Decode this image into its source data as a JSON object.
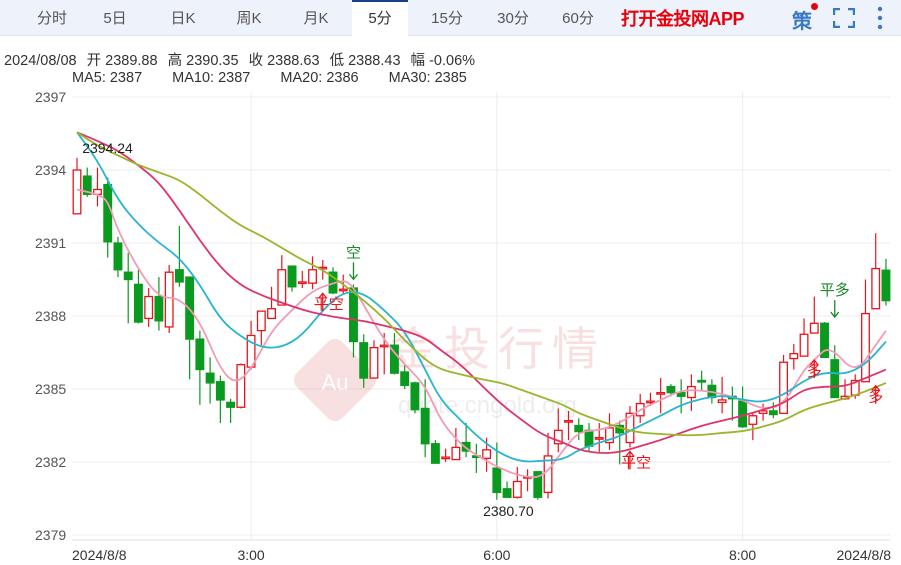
{
  "tabs": [
    {
      "label": "分时"
    },
    {
      "label": "5日"
    },
    {
      "label": "日K"
    },
    {
      "label": "周K"
    },
    {
      "label": "月K"
    },
    {
      "label": "5分",
      "active": true
    },
    {
      "label": "15分"
    },
    {
      "label": "30分"
    },
    {
      "label": "60分"
    }
  ],
  "toolbar": {
    "app_link": "打开金投网APP",
    "strategy": "策",
    "strategy_icon": "strategy-icon",
    "fullscreen_icon": "fullscreen-icon",
    "more_icon": "more-vertical-icon"
  },
  "quote": {
    "date": "2024/08/08",
    "open_label": "开",
    "open": "2389.88",
    "high_label": "高",
    "high": "2390.35",
    "close_label": "收",
    "close": "2388.63",
    "low_label": "低",
    "low": "2388.43",
    "change_label": "幅",
    "change": "-0.06%"
  },
  "ma_legend": [
    {
      "text": "MA5: 2387",
      "color": "#f29bb5"
    },
    {
      "text": "MA10: 2387",
      "color": "#27b5cf"
    },
    {
      "text": "MA20: 2386",
      "color": "#e0336e"
    },
    {
      "text": "MA30: 2385",
      "color": "#9ab52a"
    }
  ],
  "watermark": {
    "text": "金投行情",
    "url": "quote.cngold.org",
    "logo": "Au"
  },
  "colors": {
    "up": "#e8141c",
    "down": "#0a9a1f"
  },
  "chart_data": {
    "type": "candlestick",
    "ylim": [
      2379,
      2397
    ],
    "yticks": [
      "2397",
      "2394",
      "2391",
      "2388",
      "2385",
      "2382",
      "2379"
    ],
    "xticks": [
      {
        "label": "2024/8/8",
        "index": 0
      },
      {
        "label": "3:00",
        "index": 17
      },
      {
        "label": "6:00",
        "index": 41
      },
      {
        "label": "8:00",
        "index": 65
      },
      {
        "label": "2024/8/8",
        "index": 79
      }
    ],
    "max_label": {
      "text": "2394.24",
      "index": 1
    },
    "min_label": {
      "text": "2380.70",
      "index": 42
    },
    "ohlc": [
      [
        2392.2,
        2394.5,
        2392.2,
        2394.0
      ],
      [
        2393.75,
        2394.1,
        2392.9,
        2393.0
      ],
      [
        2393.0,
        2394.1,
        2392.5,
        2393.2
      ],
      [
        2393.4,
        2393.7,
        2390.4,
        2391.05
      ],
      [
        2391.0,
        2391.25,
        2389.6,
        2389.9
      ],
      [
        2389.8,
        2390.6,
        2387.7,
        2389.5
      ],
      [
        2389.3,
        2389.9,
        2387.7,
        2387.75
      ],
      [
        2387.9,
        2389.15,
        2387.55,
        2388.8
      ],
      [
        2388.8,
        2389.6,
        2387.4,
        2387.8
      ],
      [
        2387.55,
        2390.1,
        2387.3,
        2389.8
      ],
      [
        2389.9,
        2391.7,
        2389.2,
        2389.4
      ],
      [
        2389.6,
        2389.6,
        2385.4,
        2387.05
      ],
      [
        2387.05,
        2387.4,
        2384.35,
        2385.8
      ],
      [
        2385.65,
        2386.3,
        2384.4,
        2385.25
      ],
      [
        2385.3,
        2385.55,
        2383.6,
        2384.55
      ],
      [
        2384.45,
        2384.6,
        2383.6,
        2384.25
      ],
      [
        2384.25,
        2386.05,
        2384.2,
        2386.0
      ],
      [
        2385.9,
        2387.8,
        2385.8,
        2387.2
      ],
      [
        2387.4,
        2388.2,
        2386.8,
        2388.2
      ],
      [
        2387.9,
        2389.2,
        2387.9,
        2388.3
      ],
      [
        2388.45,
        2390.5,
        2388.45,
        2389.9
      ],
      [
        2390.05,
        2390.05,
        2389.0,
        2389.2
      ],
      [
        2389.35,
        2389.85,
        2389.15,
        2389.4
      ],
      [
        2389.35,
        2390.45,
        2389.1,
        2389.9
      ],
      [
        2389.95,
        2390.3,
        2389.5,
        2390.0
      ],
      [
        2389.8,
        2390.0,
        2388.9,
        2388.95
      ],
      [
        2389.1,
        2389.7,
        2388.9,
        2389.1
      ],
      [
        2389.15,
        2389.3,
        2386.3,
        2386.95
      ],
      [
        2386.9,
        2387.25,
        2385.05,
        2385.45
      ],
      [
        2385.45,
        2387.0,
        2385.45,
        2386.7
      ],
      [
        2386.75,
        2387.3,
        2385.6,
        2386.8
      ],
      [
        2386.8,
        2387.3,
        2385.6,
        2385.65
      ],
      [
        2385.7,
        2386.0,
        2385.0,
        2385.15
      ],
      [
        2385.25,
        2385.3,
        2384.0,
        2384.15
      ],
      [
        2384.2,
        2385.4,
        2382.2,
        2382.75
      ],
      [
        2382.75,
        2382.9,
        2381.95,
        2381.95
      ],
      [
        2382.15,
        2382.55,
        2382.0,
        2382.2
      ],
      [
        2382.1,
        2383.4,
        2382.1,
        2382.6
      ],
      [
        2382.8,
        2383.6,
        2382.2,
        2382.45
      ],
      [
        2382.25,
        2382.75,
        2381.55,
        2382.2
      ],
      [
        2382.15,
        2383.0,
        2381.6,
        2382.5
      ],
      [
        2381.75,
        2382.8,
        2380.45,
        2380.75
      ],
      [
        2380.9,
        2381.2,
        2380.55,
        2380.55
      ],
      [
        2380.55,
        2381.8,
        2380.5,
        2381.2
      ],
      [
        2381.35,
        2381.7,
        2380.8,
        2381.4
      ],
      [
        2381.6,
        2381.6,
        2380.45,
        2380.55
      ],
      [
        2380.75,
        2383.2,
        2380.5,
        2382.25
      ],
      [
        2382.75,
        2384.2,
        2382.4,
        2383.3
      ],
      [
        2383.65,
        2384.1,
        2382.9,
        2383.7
      ],
      [
        2383.5,
        2383.8,
        2382.9,
        2383.25
      ],
      [
        2383.3,
        2383.6,
        2382.4,
        2382.65
      ],
      [
        2382.95,
        2383.6,
        2382.4,
        2383.0
      ],
      [
        2382.8,
        2384.0,
        2382.5,
        2383.4
      ],
      [
        2383.5,
        2383.7,
        2381.9,
        2383.2
      ],
      [
        2382.8,
        2384.3,
        2382.6,
        2384.0
      ],
      [
        2383.9,
        2384.8,
        2383.6,
        2384.4
      ],
      [
        2384.45,
        2384.85,
        2384.3,
        2384.5
      ],
      [
        2384.8,
        2385.45,
        2384.0,
        2384.85
      ],
      [
        2385.1,
        2385.2,
        2384.7,
        2384.85
      ],
      [
        2384.85,
        2385.4,
        2384.0,
        2384.7
      ],
      [
        2384.65,
        2385.6,
        2384.1,
        2385.1
      ],
      [
        2385.35,
        2385.75,
        2384.9,
        2385.3
      ],
      [
        2385.15,
        2385.4,
        2384.4,
        2384.65
      ],
      [
        2384.45,
        2385.5,
        2384.0,
        2384.55
      ],
      [
        2384.7,
        2385.1,
        2383.7,
        2384.6
      ],
      [
        2384.5,
        2385.1,
        2383.4,
        2383.45
      ],
      [
        2383.55,
        2384.0,
        2382.9,
        2383.9
      ],
      [
        2384.0,
        2384.4,
        2383.7,
        2384.1
      ],
      [
        2384.1,
        2384.45,
        2383.8,
        2383.95
      ],
      [
        2384.0,
        2386.4,
        2384.0,
        2386.1
      ],
      [
        2386.25,
        2386.85,
        2385.8,
        2386.45
      ],
      [
        2386.35,
        2387.9,
        2386.35,
        2387.25
      ],
      [
        2387.3,
        2388.8,
        2387.3,
        2387.7
      ],
      [
        2387.7,
        2387.75,
        2386.3,
        2386.3
      ],
      [
        2386.2,
        2386.8,
        2384.65,
        2384.65
      ],
      [
        2384.6,
        2385.4,
        2384.55,
        2384.7
      ],
      [
        2384.75,
        2385.6,
        2384.6,
        2385.35
      ],
      [
        2385.3,
        2389.5,
        2385.3,
        2388.1
      ],
      [
        2388.3,
        2391.4,
        2388.3,
        2389.95
      ],
      [
        2389.88,
        2390.35,
        2388.43,
        2388.63
      ]
    ],
    "ma": [
      {
        "name": "MA5",
        "color": "#f29bb5",
        "points": [
          [
            0,
            2393.2
          ],
          [
            2,
            2393.0
          ],
          [
            3,
            2392.75
          ],
          [
            4,
            2391.5
          ],
          [
            6,
            2389.9
          ],
          [
            8,
            2388.75
          ],
          [
            10,
            2388.75
          ],
          [
            12,
            2387.8
          ],
          [
            14,
            2385.8
          ],
          [
            15.5,
            2385.2
          ],
          [
            17,
            2385.8
          ],
          [
            19,
            2387.4
          ],
          [
            21,
            2388.25
          ],
          [
            23,
            2389.05
          ],
          [
            25,
            2389.35
          ],
          [
            26.5,
            2389.5
          ],
          [
            28,
            2388.45
          ],
          [
            30,
            2387.0
          ],
          [
            32,
            2386.0
          ],
          [
            34,
            2385.15
          ],
          [
            35.5,
            2383.7
          ],
          [
            37.5,
            2382.7
          ],
          [
            39.5,
            2382.15
          ],
          [
            41.5,
            2381.7
          ],
          [
            43.5,
            2381.4
          ],
          [
            45.5,
            2381.35
          ],
          [
            47.5,
            2382.5
          ],
          [
            49,
            2383.25
          ],
          [
            51,
            2383.3
          ],
          [
            53,
            2383.6
          ],
          [
            55,
            2384.15
          ],
          [
            57,
            2384.55
          ],
          [
            59,
            2384.95
          ],
          [
            61,
            2384.95
          ],
          [
            63,
            2384.8
          ],
          [
            65,
            2384.55
          ],
          [
            67,
            2384.15
          ],
          [
            69,
            2384.35
          ],
          [
            71,
            2385.8
          ],
          [
            72,
            2386.2
          ],
          [
            73.5,
            2386.8
          ],
          [
            76,
            2385.6
          ],
          [
            78,
            2386.8
          ],
          [
            79,
            2387.4
          ]
        ]
      },
      {
        "name": "MA10",
        "color": "#27b5cf",
        "points": [
          [
            0,
            2395.55
          ],
          [
            2,
            2394.4
          ],
          [
            4,
            2392.75
          ],
          [
            6,
            2391.75
          ],
          [
            8,
            2391.0
          ],
          [
            10,
            2390.4
          ],
          [
            12,
            2389.3
          ],
          [
            14,
            2387.85
          ],
          [
            16,
            2387.15
          ],
          [
            18,
            2386.7
          ],
          [
            20,
            2386.7
          ],
          [
            22,
            2387.2
          ],
          [
            24,
            2388.25
          ],
          [
            26,
            2389.0
          ],
          [
            28,
            2388.95
          ],
          [
            30,
            2388.25
          ],
          [
            32,
            2387.4
          ],
          [
            34,
            2385.8
          ],
          [
            35.5,
            2384.55
          ],
          [
            37.5,
            2383.7
          ],
          [
            39.5,
            2382.9
          ],
          [
            41.5,
            2382.3
          ],
          [
            43.5,
            2382.0
          ],
          [
            45.5,
            2382.05
          ],
          [
            47.5,
            2382.1
          ],
          [
            49,
            2382.5
          ],
          [
            51,
            2382.8
          ],
          [
            53,
            2383.05
          ],
          [
            55,
            2383.5
          ],
          [
            57,
            2383.9
          ],
          [
            59,
            2384.35
          ],
          [
            61,
            2384.6
          ],
          [
            63,
            2384.75
          ],
          [
            65,
            2384.55
          ],
          [
            67,
            2384.45
          ],
          [
            69,
            2384.75
          ],
          [
            71,
            2385.35
          ],
          [
            73,
            2385.7
          ],
          [
            75,
            2385.6
          ],
          [
            77,
            2386.0
          ],
          [
            79,
            2386.95
          ]
        ]
      },
      {
        "name": "MA20",
        "color": "#e0336e",
        "points": [
          [
            0,
            2395.55
          ],
          [
            2,
            2395.2
          ],
          [
            4,
            2394.8
          ],
          [
            6,
            2394.2
          ],
          [
            8,
            2393.5
          ],
          [
            10,
            2392.35
          ],
          [
            12,
            2391.1
          ],
          [
            14,
            2390.0
          ],
          [
            16,
            2389.25
          ],
          [
            18,
            2388.85
          ],
          [
            20,
            2388.55
          ],
          [
            22,
            2388.25
          ],
          [
            24,
            2388.05
          ],
          [
            26,
            2387.9
          ],
          [
            28,
            2387.8
          ],
          [
            30,
            2387.6
          ],
          [
            32,
            2387.4
          ],
          [
            34,
            2387.1
          ],
          [
            35.5,
            2386.6
          ],
          [
            37.5,
            2386.0
          ],
          [
            39.5,
            2385.15
          ],
          [
            41.5,
            2384.35
          ],
          [
            43.5,
            2383.7
          ],
          [
            45.5,
            2383.1
          ],
          [
            47.5,
            2382.8
          ],
          [
            49,
            2382.5
          ],
          [
            51,
            2382.35
          ],
          [
            53,
            2382.4
          ],
          [
            55,
            2382.65
          ],
          [
            57,
            2382.9
          ],
          [
            59,
            2383.2
          ],
          [
            61,
            2383.5
          ],
          [
            63,
            2383.7
          ],
          [
            65,
            2383.9
          ],
          [
            67,
            2384.15
          ],
          [
            69,
            2384.4
          ],
          [
            71,
            2385.0
          ],
          [
            73,
            2385.1
          ],
          [
            75,
            2385.1
          ],
          [
            77,
            2385.45
          ],
          [
            79,
            2385.8
          ]
        ]
      },
      {
        "name": "MA30",
        "color": "#9ab52a",
        "points": [
          [
            0,
            2395.55
          ],
          [
            2,
            2395.0
          ],
          [
            4,
            2394.6
          ],
          [
            6,
            2394.2
          ],
          [
            8,
            2393.9
          ],
          [
            10,
            2393.6
          ],
          [
            12,
            2393.0
          ],
          [
            14,
            2392.3
          ],
          [
            16,
            2391.7
          ],
          [
            18,
            2391.3
          ],
          [
            20,
            2390.8
          ],
          [
            22,
            2390.3
          ],
          [
            24,
            2389.9
          ],
          [
            26,
            2389.3
          ],
          [
            28,
            2388.65
          ],
          [
            30,
            2387.9
          ],
          [
            32,
            2387.0
          ],
          [
            34,
            2386.2
          ],
          [
            35.5,
            2385.8
          ],
          [
            37.5,
            2385.6
          ],
          [
            39.5,
            2385.4
          ],
          [
            41.5,
            2385.25
          ],
          [
            43.5,
            2384.95
          ],
          [
            45.5,
            2384.65
          ],
          [
            47.5,
            2384.35
          ],
          [
            49,
            2384.0
          ],
          [
            51,
            2383.7
          ],
          [
            53,
            2383.4
          ],
          [
            55,
            2383.2
          ],
          [
            57,
            2383.15
          ],
          [
            59,
            2383.1
          ],
          [
            61,
            2383.1
          ],
          [
            63,
            2383.2
          ],
          [
            65,
            2383.25
          ],
          [
            67,
            2383.45
          ],
          [
            69,
            2383.7
          ],
          [
            71,
            2384.15
          ],
          [
            73,
            2384.4
          ],
          [
            75,
            2384.6
          ],
          [
            77,
            2384.9
          ],
          [
            79,
            2385.25
          ]
        ]
      }
    ],
    "signals": [
      {
        "text": "空",
        "index": 27,
        "price": 2389.3,
        "dir": "down",
        "color": "#1a8a2a"
      },
      {
        "text": "平空",
        "index": 24,
        "price": 2389.1,
        "dir": "up",
        "color": "#e8141c"
      },
      {
        "text": "平空",
        "index": 54,
        "price": 2382.6,
        "dir": "up",
        "color": "#e8141c"
      },
      {
        "text": "多",
        "index": 72,
        "price": 2386.35,
        "dir": "up",
        "color": "#e8141c"
      },
      {
        "text": "平多",
        "index": 74,
        "price": 2387.75,
        "dir": "down",
        "color": "#1a8a2a"
      },
      {
        "text": "多",
        "index": 78,
        "price": 2385.3,
        "dir": "up",
        "color": "#e8141c"
      }
    ]
  }
}
